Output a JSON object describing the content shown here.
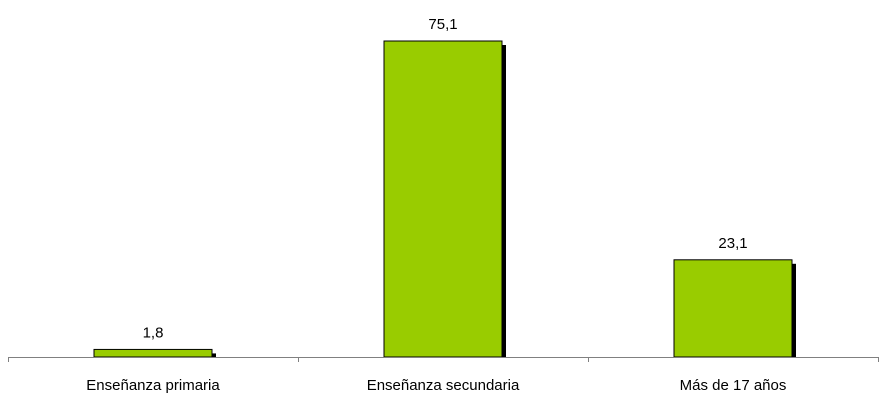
{
  "chart_data": {
    "type": "bar",
    "categories": [
      "Enseñanza primaria",
      "Enseñanza secundaria",
      "Más de 17 años"
    ],
    "values": [
      1.8,
      75.1,
      23.1
    ],
    "value_labels": [
      "1,8",
      "75,1",
      "23,1"
    ],
    "title": "",
    "xlabel": "",
    "ylabel": "",
    "ylim": [
      0,
      75.1
    ],
    "grid": false,
    "legend": "none",
    "bar_color": "#99cc00",
    "bar_edge_color": "#000000",
    "bar_shadow_color": "#000000",
    "axis_color": "#808080"
  }
}
